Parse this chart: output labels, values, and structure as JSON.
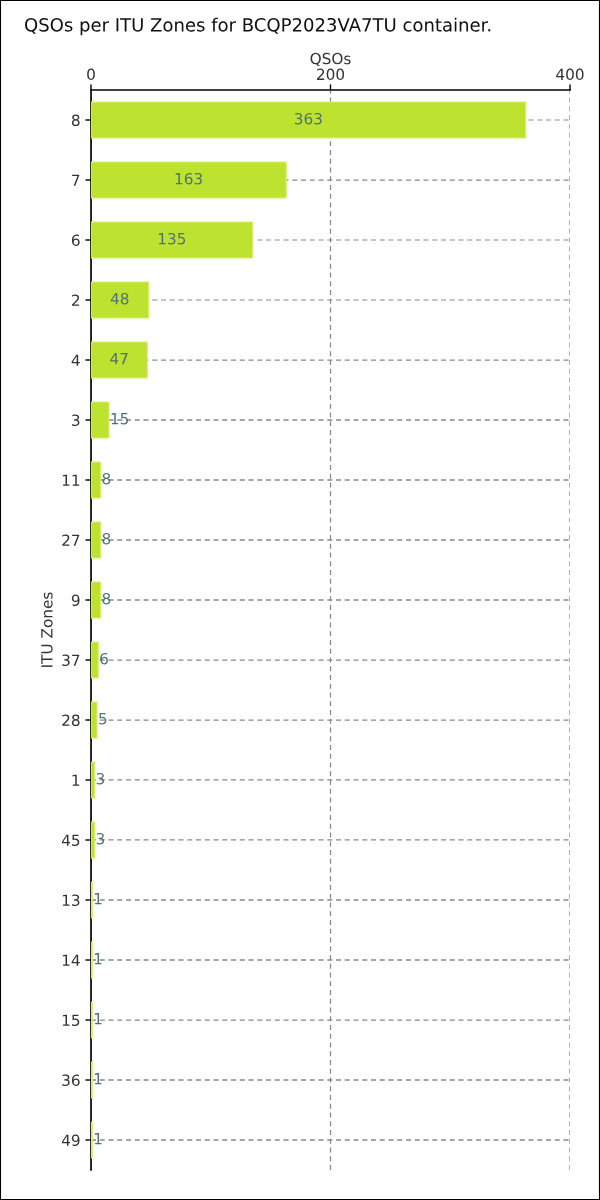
{
  "chart_data": {
    "type": "bar",
    "orientation": "horizontal",
    "title": "QSOs per ITU Zones for BCQP2023VA7TU container.",
    "xlabel": "QSOs",
    "ylabel": "ITU Zones",
    "categories": [
      "8",
      "7",
      "6",
      "2",
      "4",
      "3",
      "11",
      "27",
      "9",
      "37",
      "28",
      "1",
      "45",
      "13",
      "14",
      "15",
      "36",
      "49"
    ],
    "values": [
      363,
      163,
      135,
      48,
      47,
      15,
      8,
      8,
      8,
      6,
      5,
      3,
      3,
      1,
      1,
      1,
      1,
      1
    ],
    "color": "#bde22f",
    "xlim": [
      0,
      400
    ],
    "xticks": [
      0,
      200,
      400
    ],
    "grid": true,
    "data_labels": true
  }
}
